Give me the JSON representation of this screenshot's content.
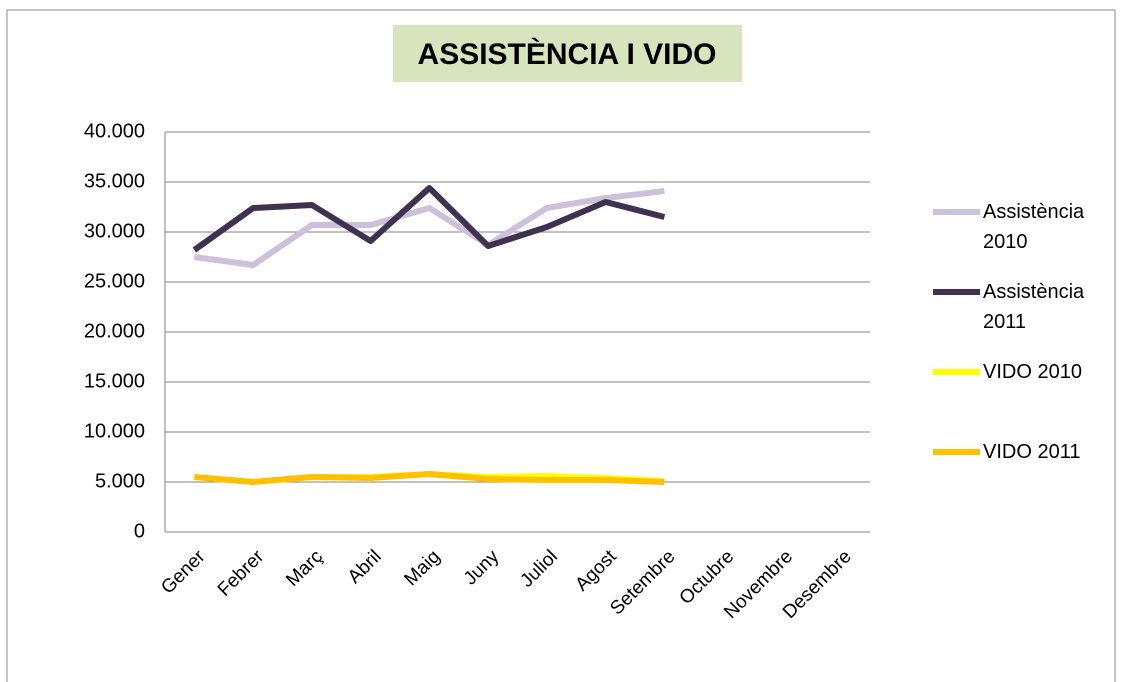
{
  "chart_data": {
    "type": "line",
    "title": "ASSISTÈNCIA I VIDO",
    "categories": [
      "Gener",
      "Febrer",
      "Març",
      "Abril",
      "Maig",
      "Juny",
      "Juliol",
      "Agost",
      "Setembre",
      "Octubre",
      "Novembre",
      "Desembre"
    ],
    "series": [
      {
        "name": "Assistència 2010",
        "color": "#ccc0da",
        "values": [
          27500,
          26700,
          30700,
          30700,
          32400,
          28700,
          32400,
          33400,
          34100,
          null,
          null,
          null
        ]
      },
      {
        "name": "Assistència 2011",
        "color": "#403151",
        "values": [
          28200,
          32400,
          32700,
          29100,
          34400,
          28600,
          30500,
          33000,
          31500,
          null,
          null,
          null
        ]
      },
      {
        "name": "VIDO 2010",
        "color": "#ffff00",
        "values": [
          5500,
          5000,
          5500,
          5500,
          5800,
          5500,
          5600,
          5400,
          5100,
          null,
          null,
          null
        ]
      },
      {
        "name": "VIDO 2011",
        "color": "#ffc000",
        "values": [
          5500,
          5000,
          5500,
          5400,
          5800,
          5300,
          5200,
          5200,
          5000,
          null,
          null,
          null
        ]
      }
    ],
    "ylim": [
      0,
      40000
    ],
    "yticks": [
      0,
      {
        "value": 5000,
        "label": "5.000"
      },
      {
        "value": 10000,
        "label": "10.000"
      },
      {
        "value": 15000,
        "label": "15.000"
      },
      {
        "value": 20000,
        "label": "20.000"
      },
      {
        "value": 25000,
        "label": "25.000"
      },
      {
        "value": 30000,
        "label": "30.000"
      },
      {
        "value": 35000,
        "label": "35.000"
      },
      {
        "value": 40000,
        "label": "40.000"
      }
    ],
    "grid": true,
    "legend": "right"
  }
}
